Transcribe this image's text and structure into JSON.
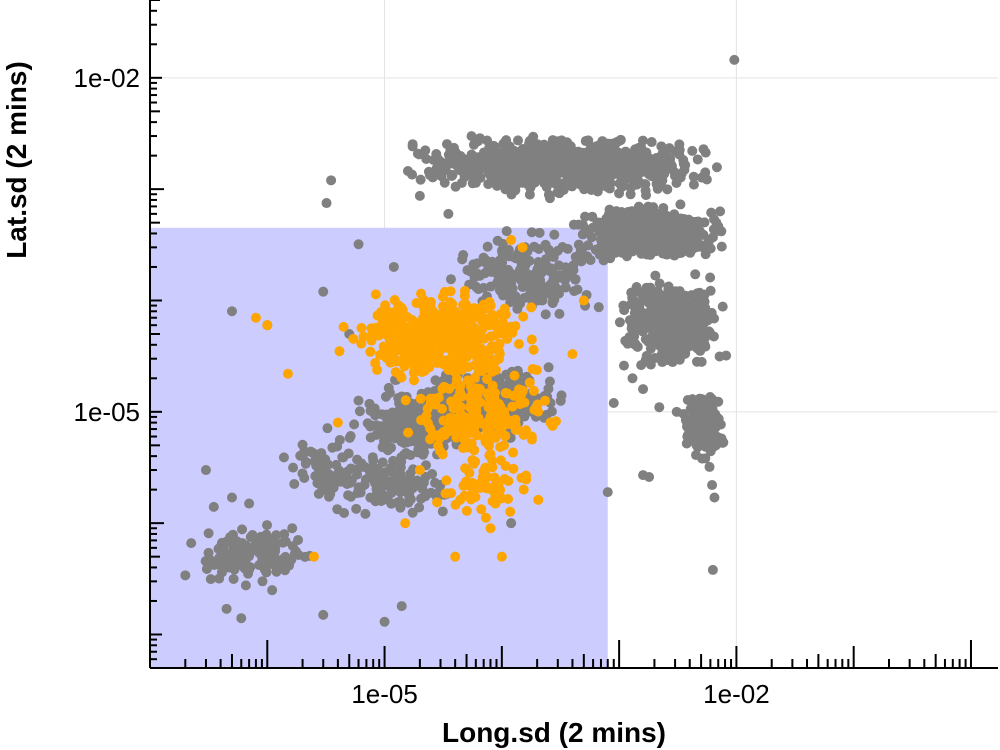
{
  "chart_data": {
    "type": "scatter",
    "xlabel": "Long.sd (2 mins)",
    "ylabel": "Lat.sd (2 mins)",
    "x_scale": "log10",
    "y_scale": "log10",
    "xlim": [
      1e-07,
      1.7
    ],
    "ylim": [
      5e-08,
      0.05
    ],
    "x_ticks": [
      {
        "value": 1e-05,
        "label": "1e-05"
      },
      {
        "value": 0.01,
        "label": "1e-02"
      }
    ],
    "y_ticks": [
      {
        "value": 1e-05,
        "label": "1e-05"
      },
      {
        "value": 0.01,
        "label": "1e-02"
      }
    ],
    "grid": true,
    "highlight_region": {
      "x": [
        1e-07,
        0.0008
      ],
      "y": [
        5e-08,
        0.00045
      ],
      "color": "#ccccff"
    },
    "series": [
      {
        "color": "#808080",
        "points": [
          [
            0.0096,
            0.0145
          ],
          [
            0.0063,
            3.8e-07
          ],
          [
            0.0065,
            1.7e-06
          ],
          [
            0.0062,
            2.2e-06
          ],
          [
            0.0059,
            3.2e-06
          ],
          [
            0.0018,
            2.6e-06
          ],
          [
            0.0016,
            2.7e-06
          ],
          [
            0.0008,
            1.9e-06
          ],
          [
            0.00012,
            1e-06
          ],
          [
            1.4e-05,
            1.8e-07
          ],
          [
            1e-05,
            1.3e-07
          ],
          [
            6e-07,
            1.4e-07
          ],
          [
            5e-07,
            8e-05
          ],
          [
            1e-06,
            6e-05
          ],
          [
            3e-07,
            3e-06
          ],
          [
            5e-07,
            1.7e-06
          ],
          [
            3.5e-07,
            1.4e-06
          ],
          [
            7e-07,
            1.5e-06
          ],
          [
            4.5e-07,
            1.7e-07
          ],
          [
            1.1e-06,
            2.5e-07
          ],
          [
            3e-06,
            1.5e-07
          ],
          [
            2e-07,
            3.4e-07
          ],
          [
            0.0013,
            2e-05
          ],
          [
            0.0011,
            2.6e-05
          ],
          [
            0.0016,
            1.6e-05
          ],
          [
            0.0009,
            1.2e-05
          ],
          [
            0.0022,
            1.1e-05
          ],
          [
            0.0031,
            1e-05
          ],
          [
            6e-06,
            0.00032
          ],
          [
            3e-06,
            0.00012
          ],
          [
            3.2e-06,
            0.00075
          ],
          [
            3.5e-06,
            0.0012
          ],
          [
            2e-05,
            0.00087
          ],
          [
            3.5e-05,
            0.0006
          ],
          [
            0.00011,
            0.00042
          ],
          [
            0.00018,
            0.00041
          ],
          [
            0.00028,
            0.00039
          ],
          [
            1.2e-05,
            0.0002
          ],
          [
            5e-06,
            5e-05
          ],
          [
            2e-05,
            2.5e-05
          ]
        ],
        "clusters": [
          {
            "x_range": [
              1e-05,
              0.0098
            ],
            "y_range": [
              0.0008,
              0.0033
            ],
            "count": 900
          },
          {
            "x_range": [
              0.0003,
              0.0098
            ],
            "y_range": [
              0.0002,
              0.0008
            ],
            "count": 500
          },
          {
            "x_range": [
              0.0008,
              0.0095
            ],
            "y_range": [
              2e-05,
              0.0002
            ],
            "count": 400
          },
          {
            "x_range": [
              0.003,
              0.009
            ],
            "y_range": [
              3e-06,
              2e-05
            ],
            "count": 150
          },
          {
            "x_range": [
              3e-05,
              0.0008
            ],
            "y_range": [
              6e-05,
              0.00045
            ],
            "count": 200
          },
          {
            "x_range": [
              1.5e-05,
              0.0004
            ],
            "y_range": [
              5e-06,
              3e-05
            ],
            "count": 300
          },
          {
            "x_range": [
              4e-06,
              0.0001
            ],
            "y_range": [
              3e-06,
              2e-05
            ],
            "count": 250
          },
          {
            "x_range": [
              2e-06,
              5e-05
            ],
            "y_range": [
              1e-06,
              5e-06
            ],
            "count": 120
          },
          {
            "x_range": [
              2e-07,
              3e-06
            ],
            "y_range": [
              2.5e-07,
              1.2e-06
            ],
            "count": 140
          },
          {
            "x_range": [
              1e-06,
              8e-06
            ],
            "y_range": [
              1e-06,
              8e-06
            ],
            "count": 50
          }
        ]
      },
      {
        "color": "#ffa500",
        "points": [
          [
            1e-06,
            6e-05
          ],
          [
            8e-07,
            7e-05
          ],
          [
            1.5e-06,
            2.2e-05
          ],
          [
            0.0004,
            3.3e-05
          ],
          [
            0.0005,
            0.0001
          ],
          [
            0.00012,
            0.00035
          ],
          [
            0.00015,
            0.0003
          ],
          [
            4e-06,
            8e-06
          ],
          [
            1.5e-05,
            1e-06
          ],
          [
            4e-05,
            5e-07
          ],
          [
            8e-05,
            9e-07
          ],
          [
            0.0001,
            5e-07
          ],
          [
            2.5e-06,
            5e-07
          ],
          [
            2e-05,
            3e-06
          ],
          [
            0.00018,
            6e-06
          ]
        ],
        "clusters": [
          {
            "x_range": [
              3e-06,
              0.0003
            ],
            "y_range": [
              1.5e-05,
              0.00015
            ],
            "count": 400
          },
          {
            "x_range": [
              1e-05,
              0.0004
            ],
            "y_range": [
              3e-06,
              3e-05
            ],
            "count": 200
          },
          {
            "x_range": [
              2e-05,
              0.0003
            ],
            "y_range": [
              1e-06,
              5e-06
            ],
            "count": 60
          }
        ]
      }
    ]
  }
}
